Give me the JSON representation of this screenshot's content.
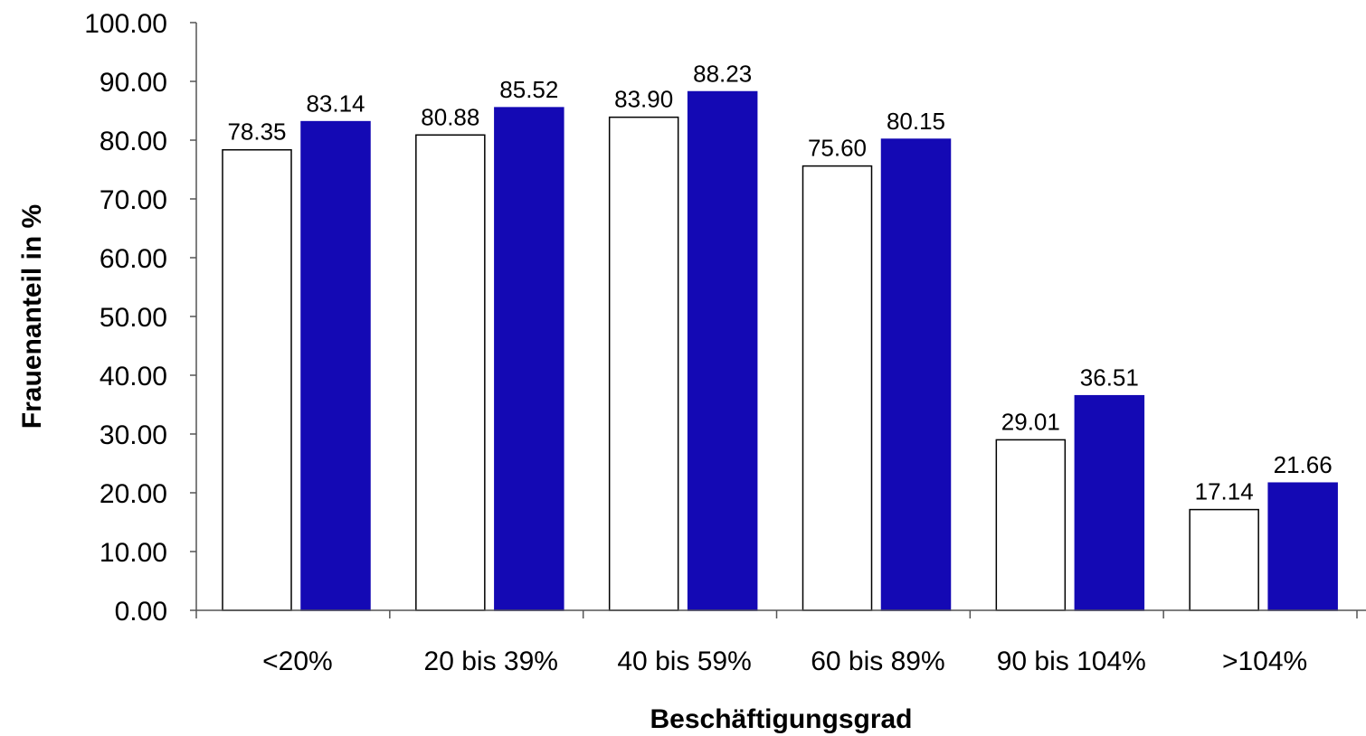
{
  "chart_data": {
    "type": "bar",
    "title": "",
    "xlabel": "Beschäftigungsgrad",
    "ylabel": "Frauenanteil in %",
    "ylim": [
      0,
      100
    ],
    "ytick_step": 10,
    "ytick_decimals": 2,
    "value_decimals": 2,
    "grid": false,
    "legend": "none",
    "categories": [
      "<20%",
      "20 bis 39%",
      "40 bis 59%",
      "60 bis 89%",
      "90 bis 104%",
      ">104%"
    ],
    "series": [
      {
        "color": "#ffffff",
        "values": [
          78.35,
          80.88,
          83.9,
          75.6,
          29.01,
          17.14
        ]
      },
      {
        "color": "#1409b4",
        "values": [
          83.14,
          85.52,
          88.23,
          80.15,
          36.51,
          21.66
        ]
      }
    ]
  }
}
